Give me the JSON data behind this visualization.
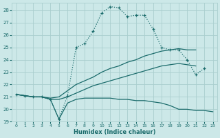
{
  "xlabel": "Humidex (Indice chaleur)",
  "xlim": [
    -0.5,
    23.5
  ],
  "ylim": [
    19,
    28.6
  ],
  "yticks": [
    19,
    20,
    21,
    22,
    23,
    24,
    25,
    26,
    27,
    28
  ],
  "xticks": [
    0,
    1,
    2,
    3,
    4,
    5,
    6,
    7,
    8,
    9,
    10,
    11,
    12,
    13,
    14,
    15,
    16,
    17,
    18,
    19,
    20,
    21,
    22,
    23
  ],
  "bg_color": "#cce8e8",
  "grid_color": "#aacece",
  "line_color": "#1a6b6b",
  "line1_x": [
    0,
    1,
    2,
    3,
    4,
    5,
    6,
    7,
    8,
    9,
    10,
    11,
    12,
    13,
    14,
    15,
    16,
    17,
    18,
    19,
    20,
    21,
    22
  ],
  "line1_y": [
    21.2,
    21.1,
    21.0,
    21.0,
    20.8,
    19.2,
    21.1,
    25.0,
    25.3,
    26.3,
    27.8,
    28.3,
    28.2,
    27.5,
    27.6,
    27.6,
    26.5,
    25.0,
    24.8,
    24.8,
    24.0,
    22.8,
    23.3
  ],
  "line2_x": [
    0,
    1,
    2,
    3,
    4,
    5,
    6,
    7,
    8,
    9,
    10,
    11,
    12,
    13,
    14,
    15,
    16,
    17,
    18,
    19,
    20,
    21
  ],
  "line2_y": [
    21.2,
    21.1,
    21.0,
    21.0,
    20.9,
    21.0,
    21.5,
    22.0,
    22.3,
    22.6,
    23.0,
    23.3,
    23.5,
    23.8,
    24.0,
    24.3,
    24.5,
    24.7,
    24.8,
    24.9,
    24.8,
    24.8
  ],
  "line3_x": [
    0,
    1,
    2,
    3,
    4,
    5,
    6,
    7,
    8,
    9,
    10,
    11,
    12,
    13,
    14,
    15,
    16,
    17,
    18,
    19,
    20,
    21
  ],
  "line3_y": [
    21.2,
    21.1,
    21.0,
    21.0,
    20.8,
    20.8,
    21.0,
    21.3,
    21.6,
    21.9,
    22.1,
    22.3,
    22.5,
    22.7,
    22.9,
    23.1,
    23.3,
    23.5,
    23.6,
    23.7,
    23.6,
    23.5
  ],
  "line4_x": [
    0,
    1,
    2,
    3,
    4,
    5,
    6,
    7,
    8,
    9,
    10,
    11,
    12,
    13,
    14,
    15,
    16,
    17,
    18,
    19,
    20,
    21,
    22,
    23
  ],
  "line4_y": [
    21.2,
    21.1,
    21.0,
    21.0,
    20.8,
    19.2,
    20.5,
    20.8,
    20.9,
    20.9,
    20.9,
    20.9,
    20.8,
    20.8,
    20.7,
    20.7,
    20.6,
    20.5,
    20.3,
    20.0,
    20.0,
    19.9,
    19.9,
    19.8
  ]
}
